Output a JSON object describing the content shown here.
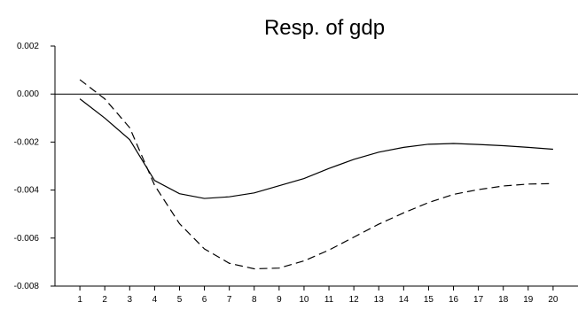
{
  "chart_data": {
    "type": "line",
    "title": "Resp. of gdp",
    "xlabel": "",
    "ylabel": "",
    "x": [
      1,
      2,
      3,
      4,
      5,
      6,
      7,
      8,
      9,
      10,
      11,
      12,
      13,
      14,
      15,
      16,
      17,
      18,
      19,
      20
    ],
    "xlim": [
      0,
      21
    ],
    "ylim": [
      -0.008,
      0.002
    ],
    "y_ticks": [
      0.002,
      0.0,
      -0.002,
      -0.004,
      -0.006,
      -0.008
    ],
    "y_tick_labels": [
      "0.002",
      "0.000",
      "-0.002",
      "-0.004",
      "-0.006",
      "-0.008"
    ],
    "x_tick_labels": [
      "1",
      "2",
      "3",
      "4",
      "5",
      "6",
      "7",
      "8",
      "9",
      "10",
      "11",
      "12",
      "13",
      "14",
      "15",
      "16",
      "17",
      "18",
      "19",
      "20"
    ],
    "zero_line": true,
    "grid": false,
    "legend": "none",
    "series": [
      {
        "style": "solid",
        "color": "#000000",
        "values": [
          -0.0002,
          -0.001,
          -0.0019,
          -0.0036,
          -0.00415,
          -0.00435,
          -0.00428,
          -0.00412,
          -0.00382,
          -0.00352,
          -0.0031,
          -0.00272,
          -0.00242,
          -0.00222,
          -0.00209,
          -0.00206,
          -0.0021,
          -0.00215,
          -0.00222,
          -0.0023
        ]
      },
      {
        "style": "dashed",
        "color": "#000000",
        "values": [
          0.0006,
          -0.0002,
          -0.0014,
          -0.0038,
          -0.0054,
          -0.00645,
          -0.00705,
          -0.00728,
          -0.00725,
          -0.00695,
          -0.0065,
          -0.00596,
          -0.00542,
          -0.00495,
          -0.00452,
          -0.00418,
          -0.00398,
          -0.00383,
          -0.00375,
          -0.00373
        ]
      }
    ]
  }
}
